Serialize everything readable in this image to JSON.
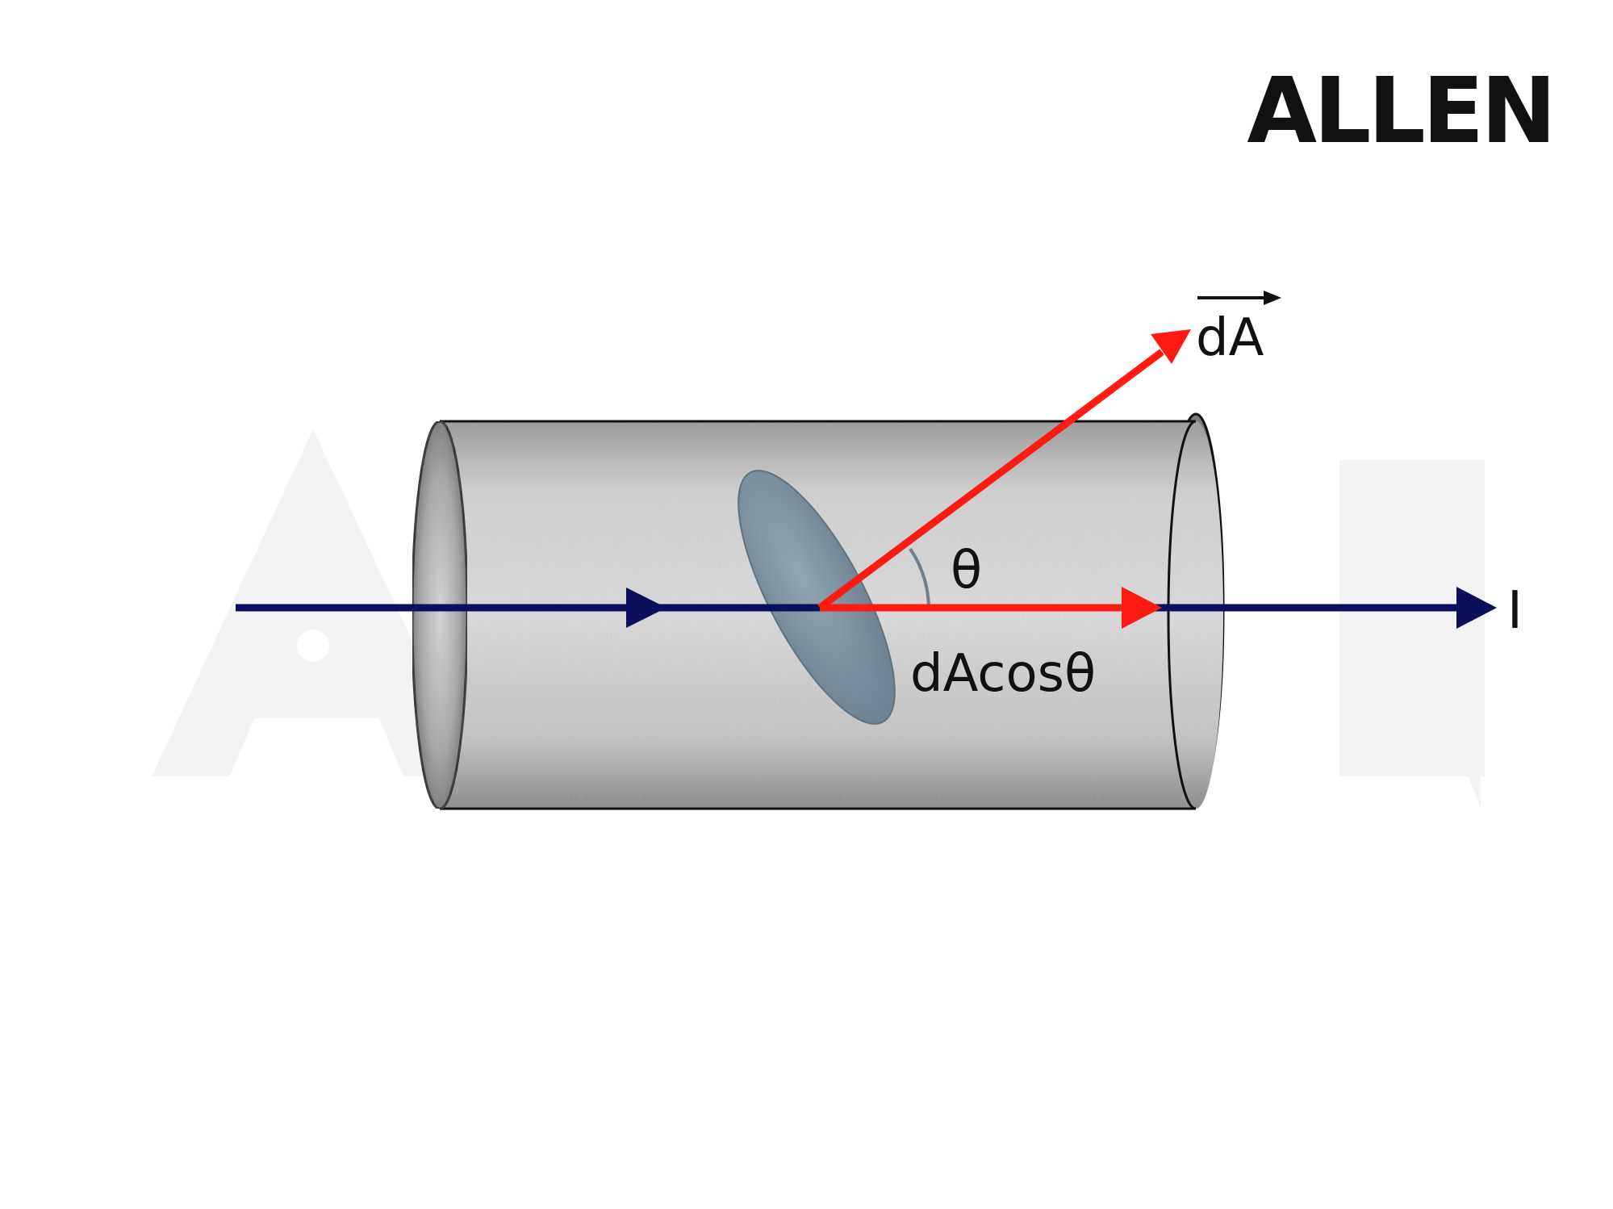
{
  "logo": {
    "text": "ALLEN",
    "color": "#111111"
  },
  "watermark": {
    "text": "ALLEN"
  },
  "labels": {
    "area_vector": "dA",
    "angle": "θ",
    "projection": "dAcosθ",
    "current": "I"
  },
  "colors": {
    "current_line": "#0c0f5a",
    "area_vector": "#ff1a14",
    "surface_element": "#7b8f9e",
    "cylinder_outline": "#111111",
    "cylinder_fill": "#c9c9c9",
    "background": "#ffffff"
  }
}
